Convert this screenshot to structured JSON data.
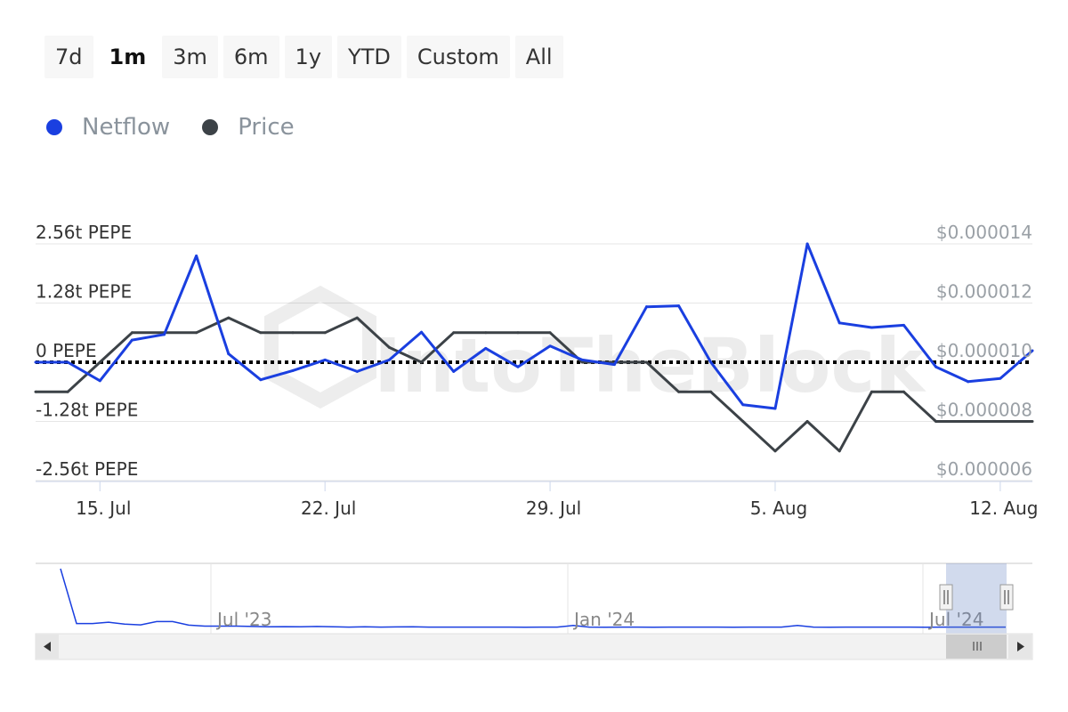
{
  "range_buttons": [
    {
      "label": "7d",
      "active": false
    },
    {
      "label": "1m",
      "active": true
    },
    {
      "label": "3m",
      "active": false
    },
    {
      "label": "6m",
      "active": false
    },
    {
      "label": "1y",
      "active": false
    },
    {
      "label": "YTD",
      "active": false
    },
    {
      "label": "Custom",
      "active": false
    },
    {
      "label": "All",
      "active": false
    }
  ],
  "watermark": "IntoTheBlock",
  "chart_data": {
    "type": "line",
    "title": "",
    "legend_position": "top-left",
    "grid": true,
    "x_ticks": [
      "15. Jul",
      "22. Jul",
      "29. Jul",
      "5. Aug",
      "12. Aug"
    ],
    "y_left": {
      "ticks": [
        2.56,
        1.28,
        0,
        -1.28,
        -2.56
      ],
      "tick_labels": [
        "2.56t PEPE",
        "1.28t PEPE",
        "0 PEPE",
        "-1.28t PEPE",
        "-2.56t PEPE"
      ],
      "ylim": [
        -2.56,
        2.56
      ],
      "unit": "t PEPE"
    },
    "y_right": {
      "ticks": [
        1.4e-05,
        1.2e-05,
        1e-05,
        8e-06,
        6e-06
      ],
      "tick_labels": [
        "$0.000014",
        "$0.000012",
        "$0.000010",
        "$0.000008",
        "$0.000006"
      ],
      "ylim": [
        6e-06,
        1.4e-05
      ],
      "unit": "$"
    },
    "x": [
      "2024-07-13",
      "2024-07-14",
      "2024-07-15",
      "2024-07-16",
      "2024-07-17",
      "2024-07-18",
      "2024-07-19",
      "2024-07-20",
      "2024-07-21",
      "2024-07-22",
      "2024-07-23",
      "2024-07-24",
      "2024-07-25",
      "2024-07-26",
      "2024-07-27",
      "2024-07-28",
      "2024-07-29",
      "2024-07-30",
      "2024-07-31",
      "2024-08-01",
      "2024-08-02",
      "2024-08-03",
      "2024-08-04",
      "2024-08-05",
      "2024-08-06",
      "2024-08-07",
      "2024-08-08",
      "2024-08-09",
      "2024-08-10",
      "2024-08-11",
      "2024-08-12",
      "2024-08-13"
    ],
    "series": [
      {
        "name": "Netflow",
        "axis": "left",
        "color": "#1a3fe0",
        "values": [
          0,
          0,
          -0.4,
          0.48,
          0.6,
          2.3,
          0.18,
          -0.38,
          -0.18,
          0.05,
          -0.2,
          0.05,
          0.65,
          -0.2,
          0.3,
          -0.1,
          0.35,
          0.05,
          -0.05,
          1.2,
          1.22,
          0,
          -0.92,
          -1,
          2.56,
          0.85,
          0.75,
          0.8,
          -0.1,
          -0.42,
          -0.35,
          0.25
        ]
      },
      {
        "name": "Price",
        "axis": "right",
        "color": "#3c4247",
        "values": [
          9e-06,
          9e-06,
          1e-05,
          1.1e-05,
          1.1e-05,
          1.1e-05,
          1.15e-05,
          1.1e-05,
          1.1e-05,
          1.1e-05,
          1.15e-05,
          1.05e-05,
          1e-05,
          1.1e-05,
          1.1e-05,
          1.1e-05,
          1.1e-05,
          1e-05,
          1e-05,
          1e-05,
          9e-06,
          9e-06,
          8e-06,
          7e-06,
          8e-06,
          7e-06,
          9e-06,
          9e-06,
          8e-06,
          8e-06,
          8e-06,
          8e-06
        ]
      }
    ],
    "navigator": {
      "labels": [
        "Jul '23",
        "Jan '24",
        "Jul '24"
      ],
      "values": [
        9.0,
        0.6,
        0.6,
        0.8,
        0.5,
        0.4,
        0.9,
        0.9,
        0.35,
        0.2,
        0.2,
        0.2,
        0.15,
        0.1,
        0.12,
        0.1,
        0.15,
        0.1,
        0.05,
        0.1,
        0.05,
        0.08,
        0.1,
        0.05,
        0.06,
        0.05,
        0.05,
        0.06,
        0.05,
        0.04,
        0.05,
        0.05,
        0.3,
        0.05,
        0.04,
        0.05,
        0.05,
        0.04,
        0.05,
        0.05,
        0.06,
        0.05,
        0.04,
        0.05,
        0.05,
        0.05,
        0.3,
        0.05,
        0.04,
        0.05,
        0.05,
        0.05,
        0.05,
        0.05,
        0.04,
        0.06,
        0.05,
        0.05,
        0.05,
        0.05
      ]
    }
  }
}
